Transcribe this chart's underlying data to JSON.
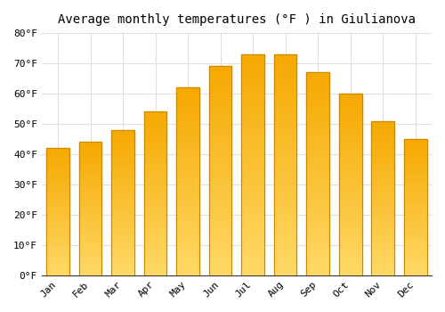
{
  "title": "Average monthly temperatures (°F ) in Giulianova",
  "months": [
    "Jan",
    "Feb",
    "Mar",
    "Apr",
    "May",
    "Jun",
    "Jul",
    "Aug",
    "Sep",
    "Oct",
    "Nov",
    "Dec"
  ],
  "values": [
    42,
    44,
    48,
    54,
    62,
    69,
    73,
    73,
    67,
    60,
    51,
    45
  ],
  "bar_color_top": "#F5A800",
  "bar_color_bottom": "#FFD966",
  "bar_edge_color": "#CC8800",
  "ylim": [
    0,
    80
  ],
  "yticks": [
    0,
    10,
    20,
    30,
    40,
    50,
    60,
    70,
    80
  ],
  "ytick_labels": [
    "0°F",
    "10°F",
    "20°F",
    "30°F",
    "40°F",
    "50°F",
    "60°F",
    "70°F",
    "80°F"
  ],
  "background_color": "#FFFFFF",
  "grid_color": "#E0E0E0",
  "title_fontsize": 10,
  "tick_fontsize": 8,
  "font_family": "monospace"
}
